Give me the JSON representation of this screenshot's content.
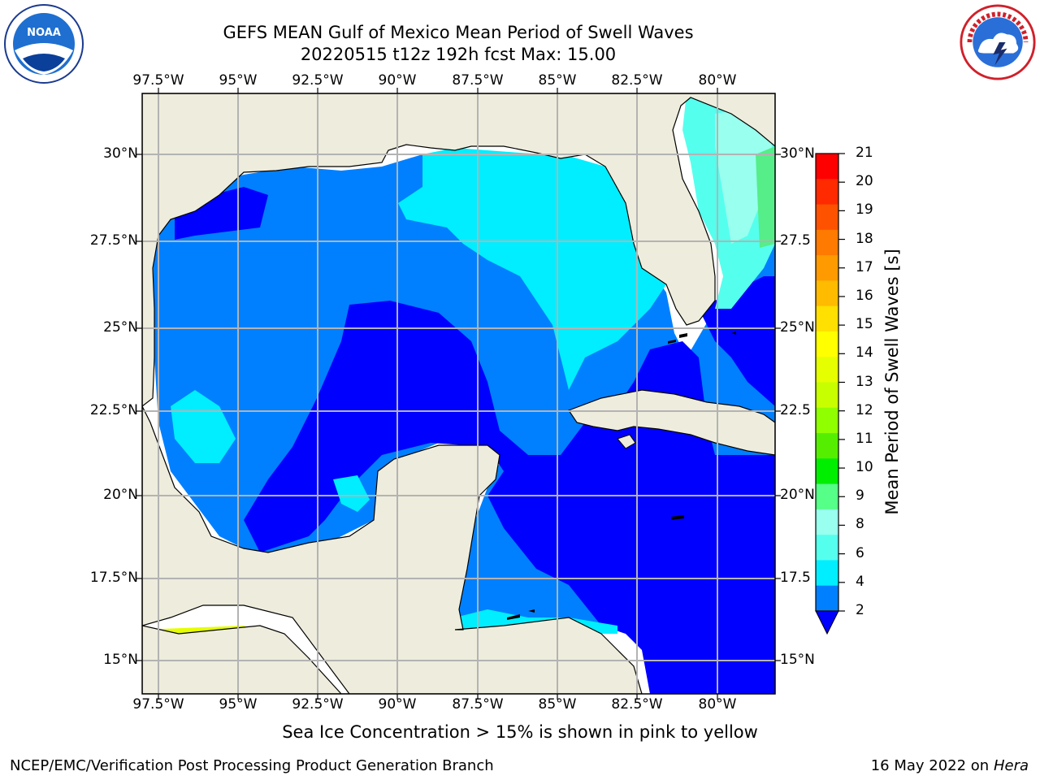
{
  "title": {
    "line1": "GEFS MEAN Gulf of Mexico Mean Period of Swell Waves",
    "line2": "20220515 t12z 192h fcst   Max: 15.00"
  },
  "map": {
    "lon_labels": [
      "97.5°W",
      "95°W",
      "92.5°W",
      "90°W",
      "87.5°W",
      "85°W",
      "82.5°W",
      "80°W"
    ],
    "lat_labels": [
      "30°N",
      "27.5°N",
      "25°N",
      "22.5°N",
      "20°N",
      "17.5°N",
      "15°N"
    ],
    "lat_labels_right": [
      "30°N",
      "27.5",
      "25°N",
      "22.5",
      "20°N",
      "17.5",
      "15°N"
    ],
    "land_color": "#eeecdc",
    "ocean_missing_color": "#ffffff"
  },
  "colorbar": {
    "label": "Mean Period of Swell Waves [s]",
    "ticks": [
      "21",
      "20",
      "19",
      "18",
      "17",
      "16",
      "15",
      "14",
      "13",
      "12",
      "11",
      "10",
      "9",
      "8",
      "6",
      "4",
      "2"
    ],
    "colors": [
      "#ff0000",
      "#ff2a00",
      "#ff5200",
      "#ff7a00",
      "#ff9a00",
      "#ffbb00",
      "#ffe000",
      "#ffff00",
      "#e6ff00",
      "#c8ff00",
      "#90ff00",
      "#55ee00",
      "#00ee00",
      "#55ff88",
      "#99ffee",
      "#55ffee",
      "#00eeff",
      "#0080ff"
    ],
    "under_color": "#0000ff"
  },
  "note": "Sea Ice Concentration > 15% is shown in pink to yellow",
  "footer": {
    "left": "NCEP/EMC/Verification Post Processing Product Generation Branch",
    "date": "16 May 2022 on",
    "host": "Hera"
  },
  "logos": {
    "noaa_text": "NOAA",
    "nws_text": "NATIONAL WEATHER SERVICE"
  }
}
